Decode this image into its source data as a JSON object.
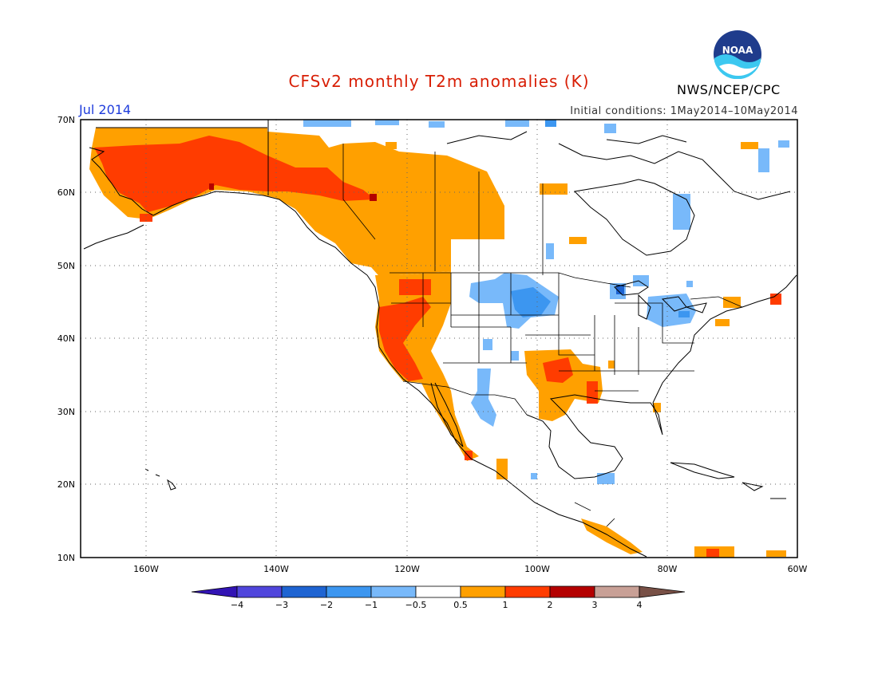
{
  "header": {
    "title": "CFSv2 monthly T2m anomalies (K)",
    "month": "Jul 2014",
    "initial_conditions": "Initial conditions: 1May2014–10May2014",
    "organization": "NWS/NCEP/CPC",
    "logo_text": "NOAA"
  },
  "map": {
    "lon_range": [
      -170,
      -60
    ],
    "lat_range": [
      10,
      70
    ],
    "lat_labels": [
      "70N",
      "60N",
      "50N",
      "40N",
      "30N",
      "20N",
      "10N"
    ],
    "lon_labels": [
      "160W",
      "140W",
      "120W",
      "100W",
      "80W",
      "60W"
    ],
    "anomaly_regions": [
      {
        "name": "alaska-yukon-warm",
        "category": "0.5 to 1"
      },
      {
        "name": "alaska-strong-warm",
        "category": "1 to 2"
      },
      {
        "name": "west-coast-warm",
        "category": "0.5 to 1"
      },
      {
        "name": "california-strong-warm",
        "category": "1 to 2"
      },
      {
        "name": "southern-plains-warm",
        "category": "0.5 to 1"
      },
      {
        "name": "oklahoma-strong-warm",
        "category": "1 to 2"
      },
      {
        "name": "northern-plains-cool",
        "category": "-1 to -0.5"
      },
      {
        "name": "great-lakes-cool",
        "category": "-1 to -0.5"
      },
      {
        "name": "southwest-cool",
        "category": "-1 to -0.5"
      }
    ]
  },
  "colorbar": {
    "labels": [
      "−4",
      "−3",
      "−2",
      "−1",
      "−0.5",
      "0.5",
      "1",
      "2",
      "3",
      "4"
    ],
    "colors": [
      "#3214b4",
      "#5046dc",
      "#1e64d2",
      "#3c96f0",
      "#78b9fa",
      "#ffffff",
      "#ffa000",
      "#ff3c00",
      "#b40000",
      "#c8a096",
      "#785046"
    ]
  }
}
